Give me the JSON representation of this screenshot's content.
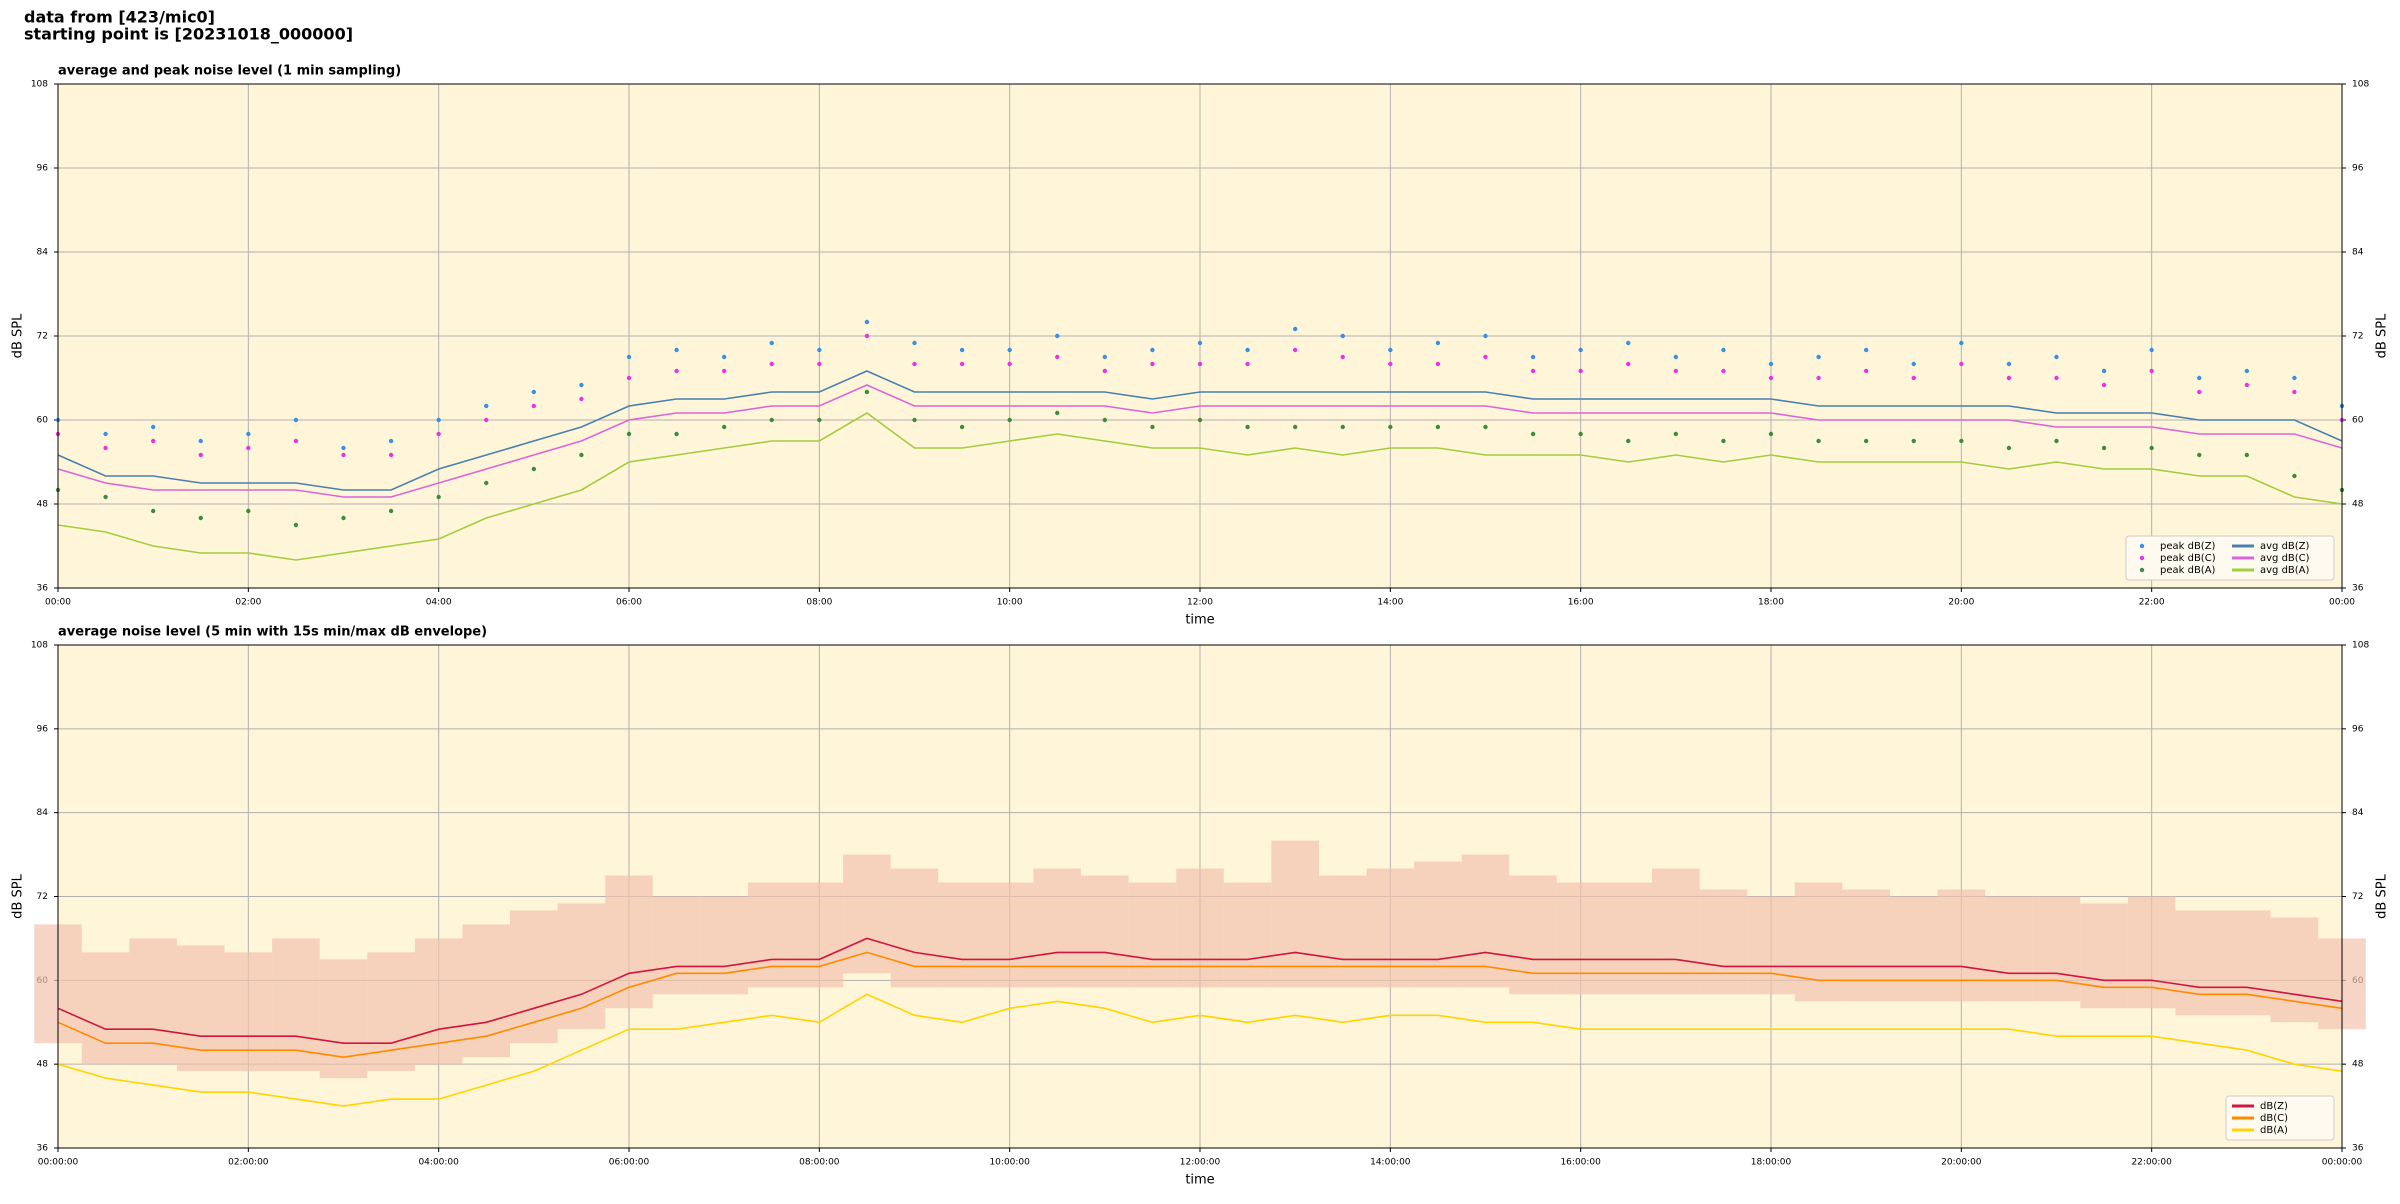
{
  "header": {
    "line1": "data from [423/mic0]",
    "line2": "starting point is [20231018_000000]"
  },
  "chart_data": [
    {
      "type": "line",
      "title": "average and peak noise level (1 min sampling)",
      "x_label": "time",
      "y_label": "dB SPL",
      "background": "#fff6d9",
      "grid": true,
      "legend": "lower right",
      "legend_columns": 2,
      "xlim": [
        0,
        24
      ],
      "ylim": [
        36,
        108
      ],
      "yticks": [
        36,
        48,
        60,
        72,
        84,
        96,
        108
      ],
      "xticks": [
        {
          "value": 0,
          "label": "00:00"
        },
        {
          "value": 2,
          "label": "02:00"
        },
        {
          "value": 4,
          "label": "04:00"
        },
        {
          "value": 6,
          "label": "06:00"
        },
        {
          "value": 8,
          "label": "08:00"
        },
        {
          "value": 10,
          "label": "10:00"
        },
        {
          "value": 12,
          "label": "12:00"
        },
        {
          "value": 14,
          "label": "14:00"
        },
        {
          "value": 16,
          "label": "16:00"
        },
        {
          "value": 18,
          "label": "18:00"
        },
        {
          "value": 20,
          "label": "20:00"
        },
        {
          "value": 22,
          "label": "22:00"
        },
        {
          "value": 24,
          "label": "00:00"
        }
      ],
      "x": [
        0,
        0.5,
        1,
        1.5,
        2,
        2.5,
        3,
        3.5,
        4,
        4.5,
        5,
        5.5,
        6,
        6.5,
        7,
        7.5,
        8,
        8.5,
        9,
        9.5,
        10,
        10.5,
        11,
        11.5,
        12,
        12.5,
        13,
        13.5,
        14,
        14.5,
        15,
        15.5,
        16,
        16.5,
        17,
        17.5,
        18,
        18.5,
        19,
        19.5,
        20,
        20.5,
        21,
        21.5,
        22,
        22.5,
        23,
        23.5,
        24
      ],
      "series": [
        {
          "name": "peak dB(Z)",
          "style": "dots",
          "color": "#3a8ee6",
          "values": [
            60,
            58,
            59,
            57,
            58,
            60,
            56,
            57,
            60,
            62,
            64,
            65,
            69,
            70,
            69,
            71,
            70,
            74,
            71,
            70,
            70,
            72,
            69,
            70,
            71,
            70,
            73,
            72,
            70,
            71,
            72,
            69,
            70,
            71,
            69,
            70,
            68,
            69,
            70,
            68,
            71,
            68,
            69,
            67,
            70,
            66,
            67,
            66,
            62
          ]
        },
        {
          "name": "peak dB(C)",
          "style": "dots",
          "color": "#e633e6",
          "values": [
            58,
            56,
            57,
            55,
            56,
            57,
            55,
            55,
            58,
            60,
            62,
            63,
            66,
            67,
            67,
            68,
            68,
            72,
            68,
            68,
            68,
            69,
            67,
            68,
            68,
            68,
            70,
            69,
            68,
            68,
            69,
            67,
            67,
            68,
            67,
            67,
            66,
            66,
            67,
            66,
            68,
            66,
            66,
            65,
            67,
            64,
            65,
            64,
            60
          ]
        },
        {
          "name": "peak dB(A)",
          "style": "dots",
          "color": "#3d8c3d",
          "values": [
            50,
            49,
            47,
            46,
            47,
            45,
            46,
            47,
            49,
            51,
            53,
            55,
            58,
            58,
            59,
            60,
            60,
            64,
            60,
            59,
            60,
            61,
            60,
            59,
            60,
            59,
            59,
            59,
            59,
            59,
            59,
            58,
            58,
            57,
            58,
            57,
            58,
            57,
            57,
            57,
            57,
            56,
            57,
            56,
            56,
            55,
            55,
            52,
            50
          ]
        },
        {
          "name": "avg dB(Z)",
          "style": "line",
          "color": "#4a7fb0",
          "values": [
            55,
            52,
            52,
            51,
            51,
            51,
            50,
            50,
            53,
            55,
            57,
            59,
            62,
            63,
            63,
            64,
            64,
            67,
            64,
            64,
            64,
            64,
            64,
            63,
            64,
            64,
            64,
            64,
            64,
            64,
            64,
            63,
            63,
            63,
            63,
            63,
            63,
            62,
            62,
            62,
            62,
            62,
            61,
            61,
            61,
            60,
            60,
            60,
            57
          ]
        },
        {
          "name": "avg dB(C)",
          "style": "line",
          "color": "#d966d9",
          "values": [
            53,
            51,
            50,
            50,
            50,
            50,
            49,
            49,
            51,
            53,
            55,
            57,
            60,
            61,
            61,
            62,
            62,
            65,
            62,
            62,
            62,
            62,
            62,
            61,
            62,
            62,
            62,
            62,
            62,
            62,
            62,
            61,
            61,
            61,
            61,
            61,
            61,
            60,
            60,
            60,
            60,
            60,
            59,
            59,
            59,
            58,
            58,
            58,
            56
          ]
        },
        {
          "name": "avg dB(A)",
          "style": "line",
          "color": "#a3cc3f",
          "values": [
            45,
            44,
            42,
            41,
            41,
            40,
            41,
            42,
            43,
            46,
            48,
            50,
            54,
            55,
            56,
            57,
            57,
            61,
            56,
            56,
            57,
            58,
            57,
            56,
            56,
            55,
            56,
            55,
            56,
            56,
            55,
            55,
            55,
            54,
            55,
            54,
            55,
            54,
            54,
            54,
            54,
            53,
            54,
            53,
            53,
            52,
            52,
            49,
            48
          ]
        }
      ]
    },
    {
      "type": "line",
      "title": "average noise level (5 min with 15s min/max dB envelope)",
      "x_label": "time",
      "y_label": "dB SPL",
      "background": "#fff6d9",
      "grid": true,
      "legend": "lower right",
      "legend_columns": 1,
      "xlim": [
        0,
        24
      ],
      "ylim": [
        36,
        108
      ],
      "yticks": [
        36,
        48,
        60,
        72,
        84,
        96,
        108
      ],
      "xticks": [
        {
          "value": 0,
          "label": "00:00:00"
        },
        {
          "value": 2,
          "label": "02:00:00"
        },
        {
          "value": 4,
          "label": "04:00:00"
        },
        {
          "value": 6,
          "label": "06:00:00"
        },
        {
          "value": 8,
          "label": "08:00:00"
        },
        {
          "value": 10,
          "label": "10:00:00"
        },
        {
          "value": 12,
          "label": "12:00:00"
        },
        {
          "value": 14,
          "label": "14:00:00"
        },
        {
          "value": 16,
          "label": "16:00:00"
        },
        {
          "value": 18,
          "label": "18:00:00"
        },
        {
          "value": 20,
          "label": "20:00:00"
        },
        {
          "value": 22,
          "label": "22:00:00"
        },
        {
          "value": 24,
          "label": "00:00:00"
        }
      ],
      "x": [
        0,
        0.5,
        1,
        1.5,
        2,
        2.5,
        3,
        3.5,
        4,
        4.5,
        5,
        5.5,
        6,
        6.5,
        7,
        7.5,
        8,
        8.5,
        9,
        9.5,
        10,
        10.5,
        11,
        11.5,
        12,
        12.5,
        13,
        13.5,
        14,
        14.5,
        15,
        15.5,
        16,
        16.5,
        17,
        17.5,
        18,
        18.5,
        19,
        19.5,
        20,
        20.5,
        21,
        21.5,
        22,
        22.5,
        23,
        23.5,
        24
      ],
      "envelope": {
        "color": "#f2c2ae",
        "lower": [
          51,
          48,
          48,
          47,
          47,
          47,
          46,
          47,
          48,
          49,
          51,
          53,
          56,
          58,
          58,
          59,
          59,
          61,
          59,
          59,
          59,
          59,
          59,
          59,
          59,
          59,
          59,
          59,
          59,
          59,
          59,
          58,
          58,
          58,
          58,
          58,
          58,
          57,
          57,
          57,
          57,
          57,
          57,
          56,
          56,
          55,
          55,
          54,
          53
        ],
        "upper": [
          68,
          64,
          66,
          65,
          64,
          66,
          63,
          64,
          66,
          68,
          70,
          71,
          75,
          72,
          72,
          74,
          74,
          78,
          76,
          74,
          74,
          76,
          75,
          74,
          76,
          74,
          80,
          75,
          76,
          77,
          78,
          75,
          74,
          74,
          76,
          73,
          72,
          74,
          73,
          72,
          73,
          72,
          72,
          71,
          72,
          70,
          70,
          69,
          66
        ]
      },
      "series": [
        {
          "name": "dB(Z)",
          "style": "line",
          "color": "#d01540",
          "values": [
            56,
            53,
            53,
            52,
            52,
            52,
            51,
            51,
            53,
            54,
            56,
            58,
            61,
            62,
            62,
            63,
            63,
            66,
            64,
            63,
            63,
            64,
            64,
            63,
            63,
            63,
            64,
            63,
            63,
            63,
            64,
            63,
            63,
            63,
            63,
            62,
            62,
            62,
            62,
            62,
            62,
            61,
            61,
            60,
            60,
            59,
            59,
            58,
            57
          ]
        },
        {
          "name": "dB(C)",
          "style": "line",
          "color": "#ff8a00",
          "values": [
            54,
            51,
            51,
            50,
            50,
            50,
            49,
            50,
            51,
            52,
            54,
            56,
            59,
            61,
            61,
            62,
            62,
            64,
            62,
            62,
            62,
            62,
            62,
            62,
            62,
            62,
            62,
            62,
            62,
            62,
            62,
            61,
            61,
            61,
            61,
            61,
            61,
            60,
            60,
            60,
            60,
            60,
            60,
            59,
            59,
            58,
            58,
            57,
            56
          ]
        },
        {
          "name": "dB(A)",
          "style": "line",
          "color": "#ffd400",
          "values": [
            48,
            46,
            45,
            44,
            44,
            43,
            42,
            43,
            43,
            45,
            47,
            50,
            53,
            53,
            54,
            55,
            54,
            58,
            55,
            54,
            56,
            57,
            56,
            54,
            55,
            54,
            55,
            54,
            55,
            55,
            54,
            54,
            53,
            53,
            53,
            53,
            53,
            53,
            53,
            53,
            53,
            53,
            52,
            52,
            52,
            51,
            50,
            48,
            47
          ]
        }
      ]
    }
  ]
}
